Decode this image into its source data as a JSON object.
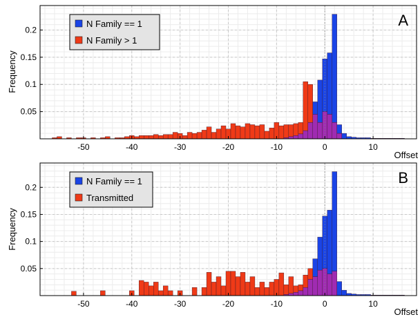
{
  "colors": {
    "blue": "#1a44e6",
    "red": "#ef3a17",
    "purple": "#a02bb2",
    "plot_bg": "#ffffff",
    "grid": "#c8c8c8",
    "legend_bg": "#e4e4e4"
  },
  "chart_data": [
    {
      "type": "bar",
      "panel_label": "A",
      "xlabel": "Offset",
      "ylabel": "Frequency",
      "xlim": [
        -59,
        19
      ],
      "ylim": [
        0,
        0.245
      ],
      "x_ticks": [
        "-50",
        "-40",
        "-30",
        "-20",
        "-10",
        "0",
        "10"
      ],
      "x_tick_values": [
        -50,
        -40,
        -30,
        -20,
        -10,
        0,
        10
      ],
      "y_ticks": [
        "0.05",
        "0.1",
        "0.15",
        "0.2"
      ],
      "y_tick_values": [
        0.05,
        0.1,
        0.15,
        0.2
      ],
      "grid": true,
      "legend_position": "top-left",
      "series": [
        {
          "name": "N Family == 1",
          "color": "#1a44e6",
          "x": [
            -8,
            -7,
            -6,
            -5,
            -4,
            -3,
            -2,
            -1,
            0,
            1,
            2,
            3,
            4,
            5,
            6,
            7,
            8,
            9,
            10,
            11,
            12,
            13,
            14,
            15,
            16
          ],
          "values": [
            0.002,
            0.004,
            0.006,
            0.009,
            0.015,
            0.03,
            0.068,
            0.108,
            0.147,
            0.158,
            0.229,
            0.026,
            0.01,
            0.004,
            0.003,
            0.002,
            0.002,
            0.002,
            0.001,
            0.001,
            0.001,
            0.001,
            0.001,
            0.001,
            0.001
          ]
        },
        {
          "name": "N Family > 1",
          "color": "#ef3a17",
          "x": [
            -56,
            -55,
            -53,
            -51,
            -50,
            -48,
            -46,
            -45,
            -43,
            -42,
            -41,
            -40,
            -39,
            -38,
            -37,
            -36,
            -35,
            -34,
            -33,
            -32,
            -31,
            -30,
            -29,
            -28,
            -27,
            -26,
            -25,
            -24,
            -23,
            -22,
            -21,
            -20,
            -19,
            -18,
            -17,
            -16,
            -15,
            -14,
            -13,
            -12,
            -11,
            -10,
            -9,
            -8,
            -7,
            -6,
            -5,
            -4,
            -3,
            -2,
            -1,
            0,
            1,
            2,
            3
          ],
          "values": [
            0.002,
            0.004,
            0.002,
            0.002,
            0.002,
            0.002,
            0.002,
            0.004,
            0.002,
            0.002,
            0.004,
            0.006,
            0.004,
            0.006,
            0.006,
            0.006,
            0.008,
            0.006,
            0.008,
            0.008,
            0.012,
            0.01,
            0.006,
            0.012,
            0.01,
            0.012,
            0.016,
            0.022,
            0.012,
            0.018,
            0.024,
            0.018,
            0.028,
            0.024,
            0.022,
            0.028,
            0.026,
            0.024,
            0.026,
            0.014,
            0.02,
            0.03,
            0.024,
            0.026,
            0.026,
            0.028,
            0.03,
            0.105,
            0.1,
            0.045,
            0.03,
            0.05,
            0.045,
            0.03,
            0.01
          ]
        }
      ]
    },
    {
      "type": "bar",
      "panel_label": "B",
      "xlabel": "Offset",
      "ylabel": "Frequency",
      "xlim": [
        -59,
        19
      ],
      "ylim": [
        0,
        0.245
      ],
      "x_ticks": [
        "-50",
        "-40",
        "-30",
        "-20",
        "-10",
        "0",
        "10"
      ],
      "x_tick_values": [
        -50,
        -40,
        -30,
        -20,
        -10,
        0,
        10
      ],
      "y_ticks": [
        "0.05",
        "0.1",
        "0.15",
        "0.2"
      ],
      "y_tick_values": [
        0.05,
        0.1,
        0.15,
        0.2
      ],
      "grid": true,
      "legend_position": "top-left",
      "series": [
        {
          "name": "N Family == 1",
          "color": "#1a44e6",
          "x": [
            -8,
            -7,
            -6,
            -5,
            -4,
            -3,
            -2,
            -1,
            0,
            1,
            2,
            3,
            4,
            5,
            6,
            7,
            8,
            9,
            10,
            11,
            12,
            13,
            14,
            15,
            16
          ],
          "values": [
            0.002,
            0.004,
            0.006,
            0.009,
            0.015,
            0.03,
            0.068,
            0.108,
            0.147,
            0.158,
            0.229,
            0.026,
            0.01,
            0.004,
            0.003,
            0.002,
            0.002,
            0.002,
            0.001,
            0.001,
            0.001,
            0.001,
            0.001,
            0.001,
            0.001
          ]
        },
        {
          "name": "Transmitted",
          "color": "#ef3a17",
          "x": [
            -52,
            -46,
            -40,
            -38,
            -37,
            -36,
            -35,
            -34,
            -33,
            -32,
            -30,
            -27,
            -25,
            -24,
            -23,
            -22,
            -21,
            -20,
            -19,
            -18,
            -17,
            -16,
            -15,
            -14,
            -13,
            -12,
            -11,
            -10,
            -9,
            -8,
            -7,
            -6,
            -5,
            -4,
            -3,
            -2,
            -1,
            0,
            1,
            2
          ],
          "values": [
            0.008,
            0.009,
            0.009,
            0.028,
            0.025,
            0.018,
            0.025,
            0.009,
            0.018,
            0.009,
            0.009,
            0.015,
            0.015,
            0.043,
            0.025,
            0.035,
            0.018,
            0.045,
            0.045,
            0.035,
            0.043,
            0.025,
            0.035,
            0.015,
            0.025,
            0.015,
            0.025,
            0.03,
            0.042,
            0.02,
            0.035,
            0.018,
            0.02,
            0.038,
            0.05,
            0.035,
            0.047,
            0.05,
            0.04,
            0.045
          ]
        }
      ]
    }
  ]
}
